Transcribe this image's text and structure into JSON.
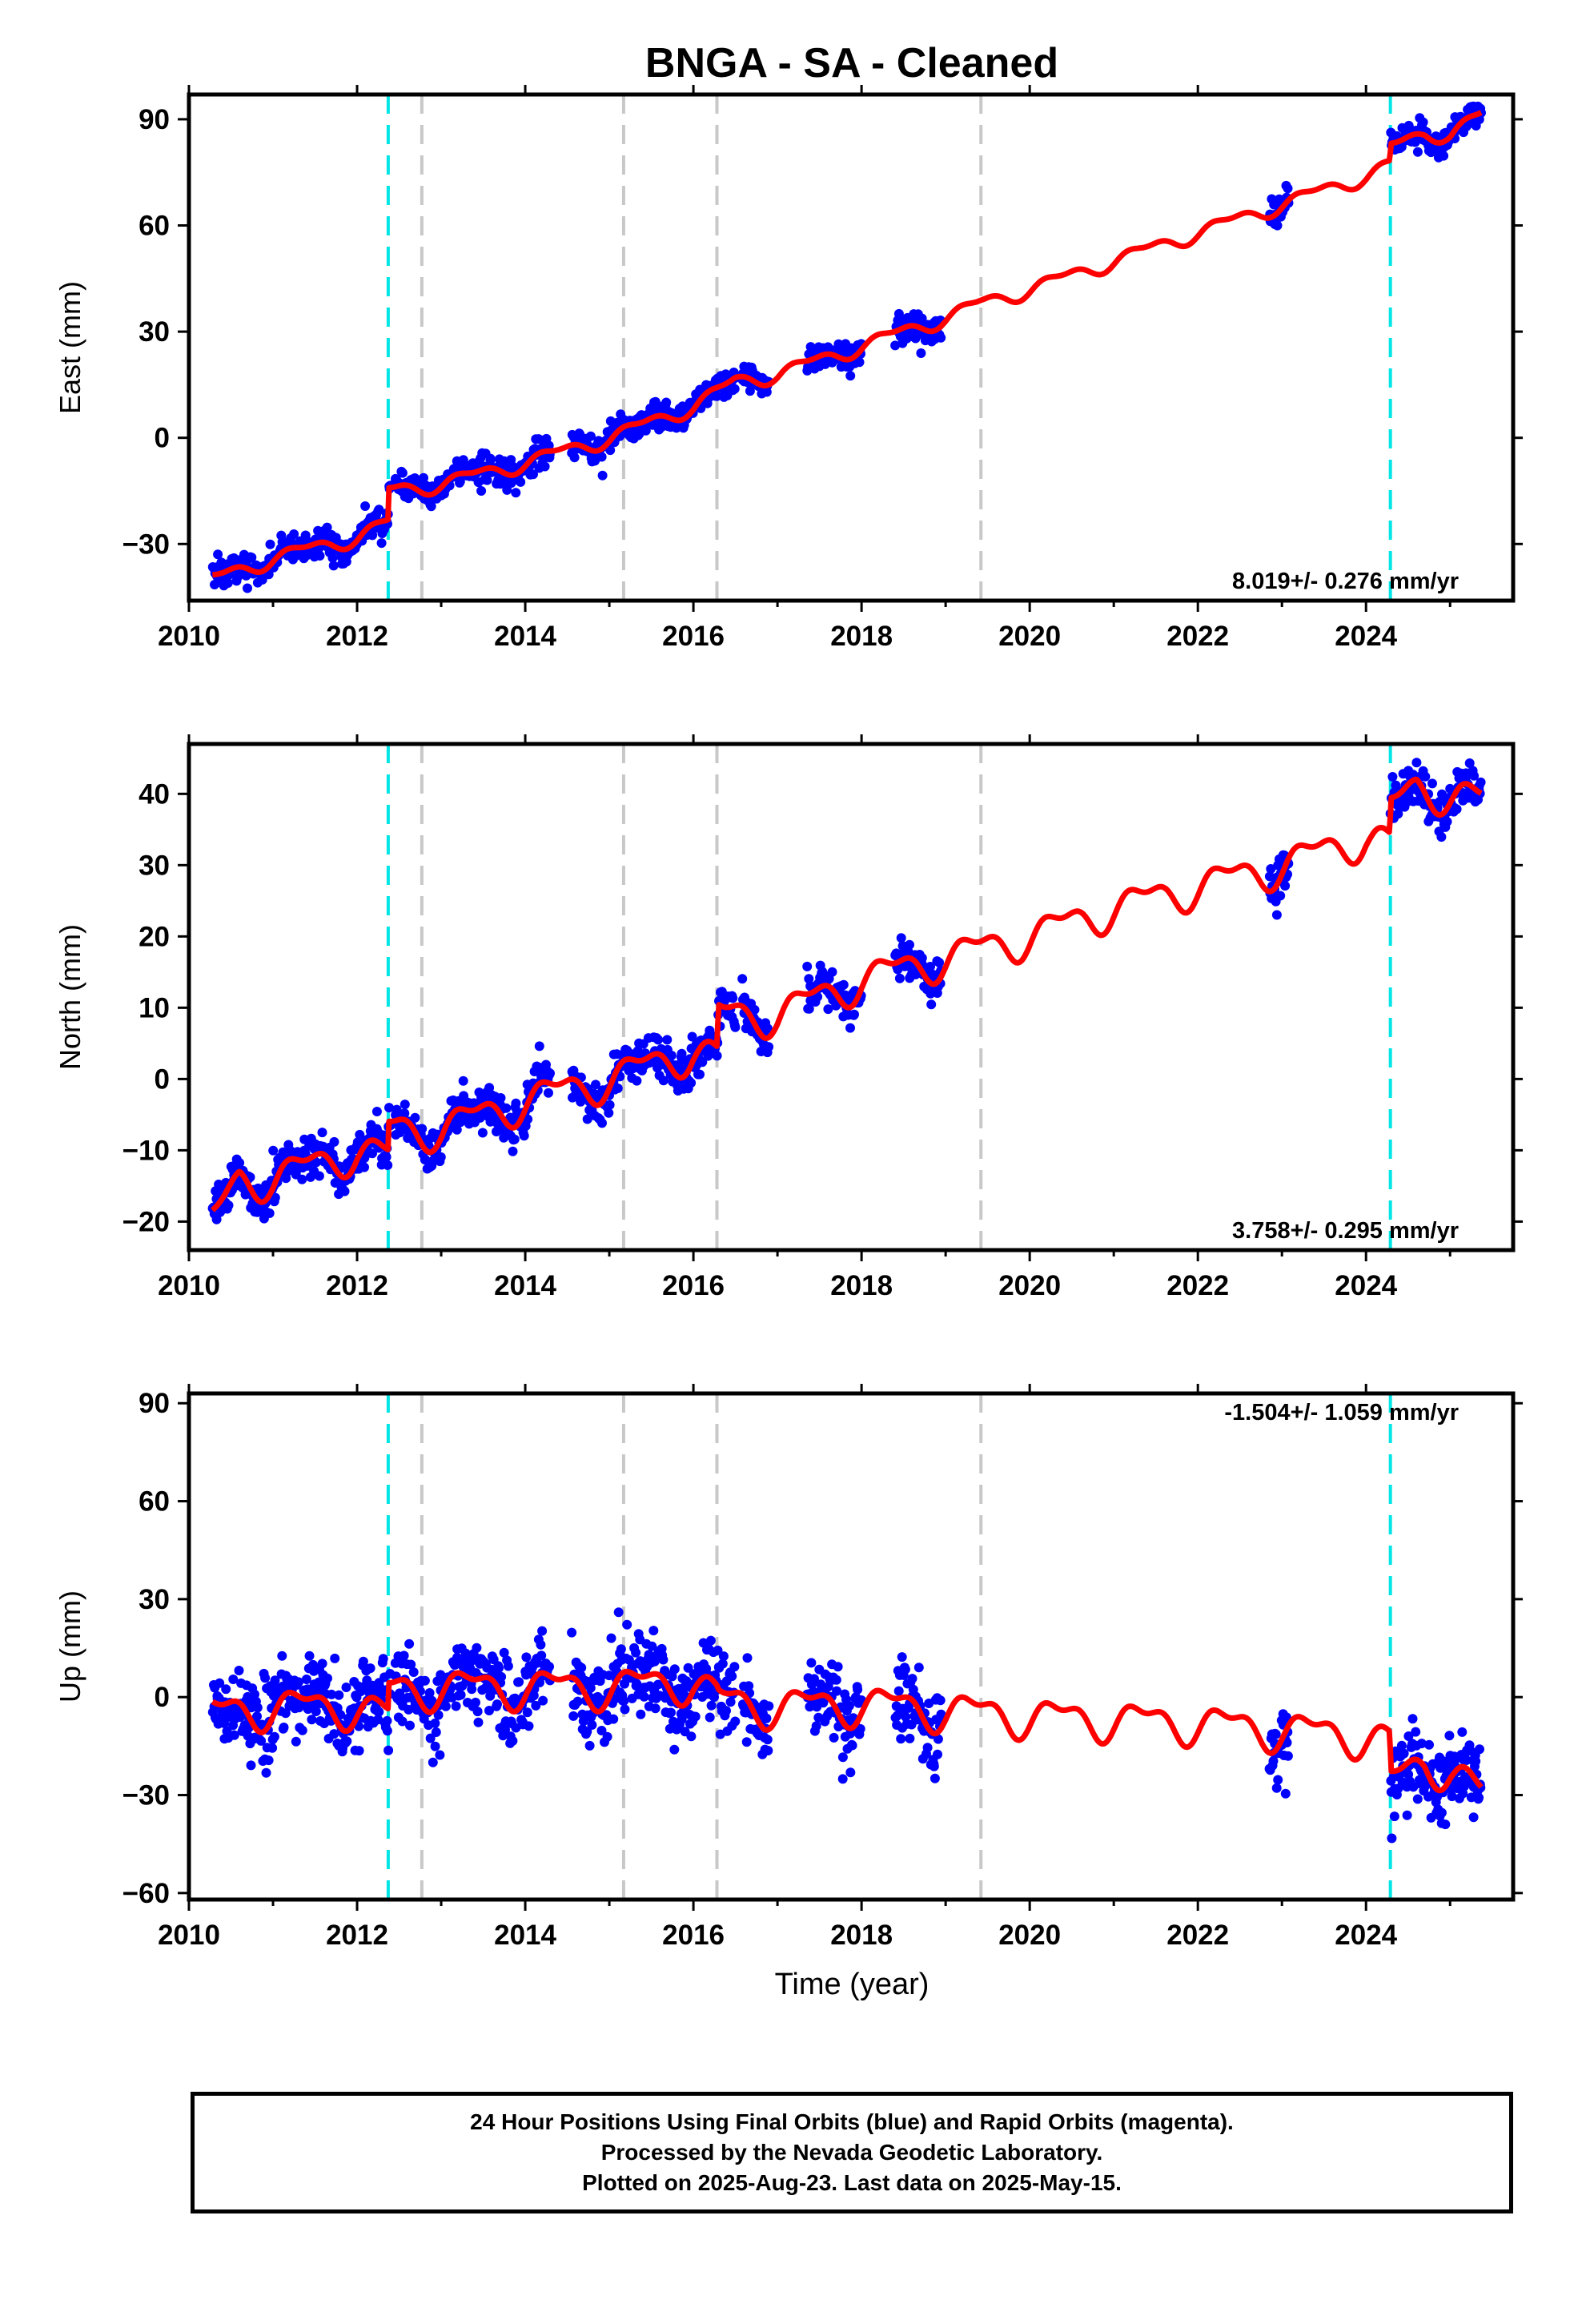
{
  "title": "BNGA  - SA - Cleaned",
  "xlabel": "Time (year)",
  "colors": {
    "final_orbits": "#0000ff",
    "model_fit": "#ff0000",
    "antenna_change": "#00e5e5",
    "event_marker": "#c8c8c8",
    "frame": "#000000"
  },
  "chart_data": [
    {
      "type": "scatter",
      "panel": "east",
      "ylabel": "East (mm)",
      "rate_label": "8.019+/- 0.276 mm/yr",
      "xlim": [
        2010,
        2025.75
      ],
      "ylim": [
        -46,
        97
      ],
      "xticks": [
        2010,
        2012,
        2014,
        2016,
        2018,
        2020,
        2022,
        2024
      ],
      "yticks": [
        -30,
        0,
        30,
        60,
        90
      ],
      "vlines_cyan": [
        2012.37,
        2024.29
      ],
      "vlines_gray": [
        2012.77,
        2015.17,
        2016.28,
        2019.42
      ],
      "data_segments": [
        [
          2010.28,
          2012.4
        ],
        [
          2012.45,
          2014.3
        ],
        [
          2014.55,
          2016.5
        ],
        [
          2016.58,
          2016.9
        ],
        [
          2017.35,
          2018.0
        ],
        [
          2018.4,
          2018.95
        ],
        [
          2022.85,
          2023.08
        ],
        [
          2024.29,
          2025.37
        ]
      ],
      "points_series_name": "Final Orbits",
      "fit_series_name": "Model",
      "fit_anchor_x": [
        2010.28,
        2011.0,
        2012.0,
        2012.37,
        2012.38,
        2013.0,
        2014.0,
        2015.0,
        2016.0,
        2016.5,
        2017.0,
        2018.0,
        2019.0,
        2019.42,
        2020.0,
        2021.0,
        2022.0,
        2023.0,
        2024.0,
        2024.28,
        2024.3,
        2024.7,
        2025.0,
        2025.37
      ],
      "fit_anchor_y": [
        -40,
        -34,
        -28,
        -24,
        -15,
        -13,
        -7,
        0,
        9,
        16,
        18,
        26,
        34,
        38,
        42,
        50,
        58,
        66,
        74,
        77,
        82,
        86,
        86,
        91
      ],
      "fit_seasonal_amp": 1.8,
      "scatter_noise": 2.0
    },
    {
      "type": "scatter",
      "panel": "north",
      "ylabel": "North (mm)",
      "rate_label": "3.758+/- 0.295 mm/yr",
      "xlim": [
        2010,
        2025.75
      ],
      "ylim": [
        -24,
        47
      ],
      "xticks": [
        2010,
        2012,
        2014,
        2016,
        2018,
        2020,
        2022,
        2024
      ],
      "yticks": [
        -20,
        -10,
        0,
        10,
        20,
        30,
        40
      ],
      "vlines_cyan": [
        2012.37,
        2024.29
      ],
      "vlines_gray": [
        2012.77,
        2015.17,
        2016.28,
        2019.42
      ],
      "data_segments": [
        [
          2010.28,
          2012.4
        ],
        [
          2012.45,
          2014.3
        ],
        [
          2014.55,
          2016.5
        ],
        [
          2016.58,
          2016.9
        ],
        [
          2017.35,
          2018.0
        ],
        [
          2018.4,
          2018.95
        ],
        [
          2022.85,
          2023.08
        ],
        [
          2024.29,
          2025.37
        ]
      ],
      "points_series_name": "Final Orbits",
      "fit_series_name": "Model",
      "fit_anchor_x": [
        2010.28,
        2010.6,
        2011.0,
        2012.0,
        2012.37,
        2012.38,
        2013.0,
        2014.0,
        2015.0,
        2016.0,
        2016.28,
        2016.3,
        2017.0,
        2018.0,
        2019.0,
        2020.0,
        2021.0,
        2022.0,
        2023.0,
        2024.0,
        2024.28,
        2024.3,
        2024.6,
        2025.0,
        2025.37
      ],
      "fit_anchor_y": [
        -20,
        -14,
        -14,
        -10,
        -11,
        -7,
        -7,
        -3,
        0,
        4,
        3,
        9,
        9,
        14,
        17,
        20,
        24,
        27,
        30,
        34,
        33,
        38,
        41,
        40,
        39
      ],
      "fit_seasonal_amp": 2.2,
      "scatter_noise": 1.4
    },
    {
      "type": "scatter",
      "panel": "up",
      "ylabel": "Up (mm)",
      "rate_label": "-1.504+/- 1.059 mm/yr",
      "xlim": [
        2010,
        2025.75
      ],
      "ylim": [
        -62,
        93
      ],
      "xticks": [
        2010,
        2012,
        2014,
        2016,
        2018,
        2020,
        2022,
        2024
      ],
      "yticks": [
        -60,
        -30,
        0,
        30,
        60,
        90
      ],
      "vlines_cyan": [
        2012.37,
        2024.29
      ],
      "vlines_gray": [
        2012.77,
        2015.17,
        2016.28,
        2019.42
      ],
      "data_segments": [
        [
          2010.28,
          2012.4
        ],
        [
          2012.45,
          2014.3
        ],
        [
          2014.55,
          2016.5
        ],
        [
          2016.58,
          2016.9
        ],
        [
          2017.35,
          2018.0
        ],
        [
          2018.4,
          2018.95
        ],
        [
          2022.85,
          2023.08
        ],
        [
          2024.29,
          2025.37
        ]
      ],
      "points_series_name": "Final Orbits",
      "fit_series_name": "Model",
      "fit_anchor_x": [
        2010.28,
        2011.0,
        2012.0,
        2012.37,
        2012.38,
        2013.0,
        2014.0,
        2015.0,
        2016.0,
        2016.28,
        2016.3,
        2017.0,
        2018.0,
        2019.0,
        2020.0,
        2021.0,
        2022.0,
        2023.0,
        2024.0,
        2024.28,
        2024.3,
        2024.7,
        2025.0,
        2025.37
      ],
      "fit_anchor_y": [
        -5,
        -3,
        -3,
        -6,
        2,
        3,
        3,
        3,
        5,
        0,
        -1,
        -3,
        -2,
        -4,
        -6,
        -7,
        -8,
        -10,
        -12,
        -14,
        -26,
        -20,
        -22,
        -30
      ],
      "fit_seasonal_amp": 5.0,
      "scatter_noise": 6.0
    }
  ],
  "footer": {
    "line1": "24 Hour Positions Using Final Orbits (blue) and Rapid Orbits (magenta).",
    "line2": "Processed by the Nevada Geodetic Laboratory.",
    "line3": "Plotted on 2025-Aug-23. Last data on 2025-May-15."
  }
}
